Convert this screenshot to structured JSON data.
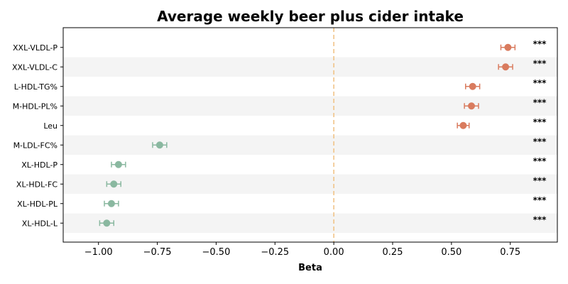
{
  "chart_data": {
    "type": "forest",
    "title": "Average weekly beer plus cider intake",
    "xlabel": "Beta",
    "ylabel": "",
    "xlim": [
      -1.15,
      0.95
    ],
    "xticks": [
      -1.0,
      -0.75,
      -0.5,
      -0.25,
      0.0,
      0.25,
      0.5,
      0.75
    ],
    "xtick_labels": [
      "−1.00",
      "−0.75",
      "−0.50",
      "−0.25",
      "0.00",
      "0.25",
      "0.50",
      "0.75"
    ],
    "reference_line": 0.0,
    "grid": false,
    "categories": [
      "XXL-VLDL-P",
      "XXL-VLDL-C",
      "L-HDL-TG%",
      "M-HDL-PL%",
      "Leu",
      "M-LDL-FC%",
      "XL-HDL-P",
      "XL-HDL-FC",
      "XL-HDL-PL",
      "XL-HDL-L"
    ],
    "values": [
      0.74,
      0.73,
      0.59,
      0.585,
      0.55,
      -0.74,
      -0.915,
      -0.935,
      -0.945,
      -0.965
    ],
    "ci_low": [
      0.71,
      0.7,
      0.56,
      0.555,
      0.525,
      -0.77,
      -0.945,
      -0.965,
      -0.975,
      -0.995
    ],
    "ci_high": [
      0.77,
      0.76,
      0.62,
      0.615,
      0.575,
      -0.71,
      -0.885,
      -0.905,
      -0.915,
      -0.935
    ],
    "significance": [
      "***",
      "***",
      "***",
      "***",
      "***",
      "***",
      "***",
      "***",
      "***",
      "***"
    ],
    "colors": {
      "positive": "#d97b5e",
      "negative": "#8ab8a0",
      "reference": "#f0c080",
      "band": "#f4f4f4"
    }
  }
}
